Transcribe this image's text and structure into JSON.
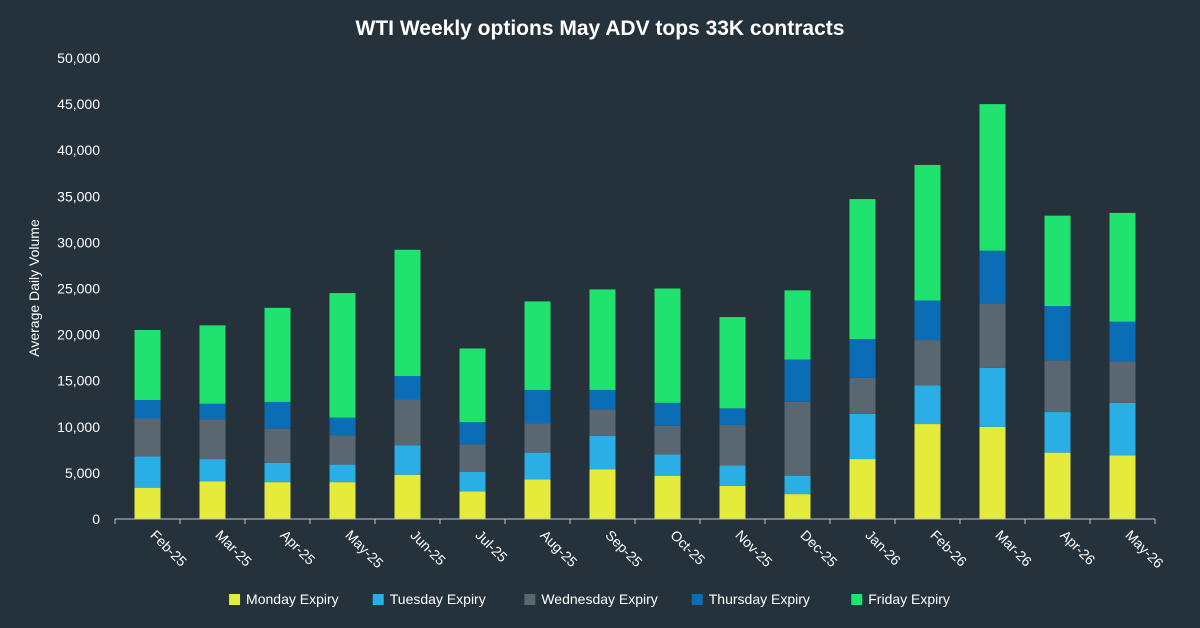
{
  "chart_data": {
    "type": "bar",
    "stacked": true,
    "title": "WTI Weekly options May ADV tops 33K contracts",
    "ylabel": "Average Daily Volume",
    "xlabel": "",
    "ylim": [
      0,
      50000
    ],
    "yticks": [
      0,
      5000,
      10000,
      15000,
      20000,
      25000,
      30000,
      35000,
      40000,
      45000,
      50000
    ],
    "ytick_labels": [
      "0",
      "5,000",
      "10,000",
      "15,000",
      "20,000",
      "25,000",
      "30,000",
      "35,000",
      "40,000",
      "45,000",
      "50,000"
    ],
    "grid": false,
    "legend_position": "bottom",
    "categories": [
      "Feb-25",
      "Mar-25",
      "Apr-25",
      "May-25",
      "Jun-25",
      "Jul-25",
      "Aug-25",
      "Sep-25",
      "Oct-25",
      "Nov-25",
      "Dec-25",
      "Jan-26",
      "Feb-26",
      "Mar-26",
      "Apr-26",
      "May-26"
    ],
    "series": [
      {
        "name": "Monday Expiry",
        "color": "#e4eb3b",
        "values": [
          3400,
          4100,
          4000,
          4000,
          4800,
          3000,
          4300,
          5400,
          4700,
          3600,
          2700,
          6500,
          10300,
          10000,
          7200,
          6900
        ]
      },
      {
        "name": "Tuesday Expiry",
        "color": "#29aee6",
        "values": [
          3400,
          2400,
          2100,
          1900,
          3200,
          2100,
          2900,
          3600,
          2300,
          2200,
          2000,
          4900,
          4200,
          6400,
          4400,
          5700
        ]
      },
      {
        "name": "Wednesday Expiry",
        "color": "#5a6670",
        "values": [
          4100,
          4300,
          3700,
          3200,
          5000,
          3000,
          3200,
          2900,
          3100,
          4400,
          8000,
          3900,
          4900,
          7000,
          5600,
          4500
        ]
      },
      {
        "name": "Thursday Expiry",
        "color": "#0a6db6",
        "values": [
          2000,
          1700,
          2900,
          1900,
          2500,
          2400,
          3600,
          2100,
          2500,
          1800,
          4600,
          4200,
          4300,
          5700,
          5900,
          4300
        ]
      },
      {
        "name": "Friday Expiry",
        "color": "#1fe36e",
        "values": [
          7600,
          8500,
          10200,
          13500,
          13700,
          8000,
          9600,
          10900,
          12400,
          9900,
          7500,
          15200,
          14700,
          15900,
          9800,
          11800
        ]
      }
    ]
  }
}
